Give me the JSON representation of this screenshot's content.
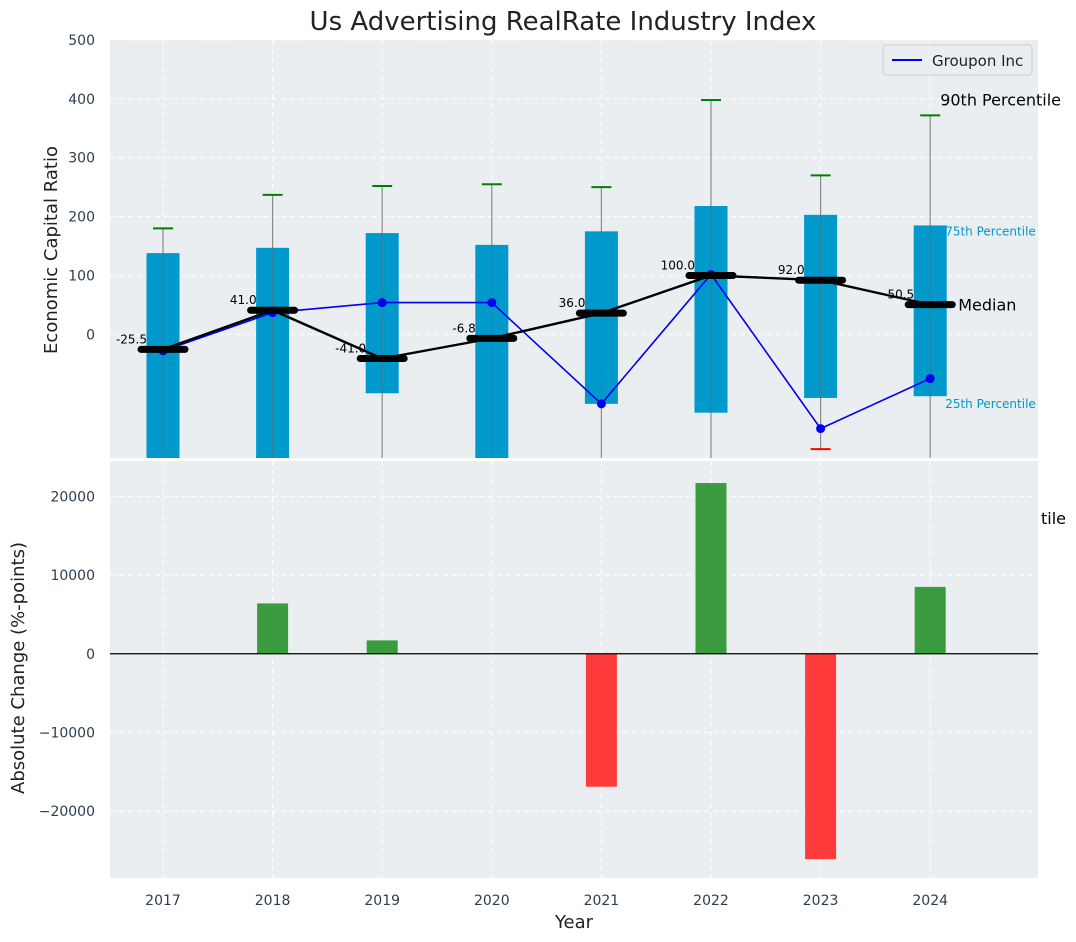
{
  "chart_data": [
    {
      "type": "box",
      "title": "Us Advertising RealRate Industry Index",
      "ylabel": "Economic Capital Ratio",
      "ylim": [
        -210,
        500
      ],
      "yticks": [
        0,
        100,
        200,
        300,
        400,
        500
      ],
      "categories": [
        "2017",
        "2018",
        "2019",
        "2020",
        "2021",
        "2022",
        "2023",
        "2024"
      ],
      "p90": [
        180,
        237,
        252,
        255,
        250,
        398,
        270,
        372
      ],
      "p75": [
        138,
        147,
        172,
        152,
        175,
        218,
        203,
        185
      ],
      "median": [
        -25.5,
        41.0,
        -41.0,
        -6.8,
        36.0,
        100.0,
        92.0,
        50.5
      ],
      "median_labels": [
        "-25.5",
        "41.0",
        "-41.0",
        "-6.8",
        "36.0",
        "100.0",
        "92.0",
        "50.5"
      ],
      "p25": [
        -210,
        -210,
        -100,
        -210,
        -118,
        -133,
        -108,
        -105
      ],
      "p10": [
        null,
        null,
        null,
        null,
        null,
        null,
        -195,
        null
      ],
      "series": [
        {
          "name": "Groupon Inc",
          "values": [
            -28,
            37,
            54,
            54,
            -118,
            102,
            -160,
            -75
          ]
        }
      ],
      "annotations": {
        "p90": "90th Percentile",
        "p75": "75th Percentile",
        "median": "Median",
        "p25": "25th Percentile",
        "cut": "tile"
      },
      "colors": {
        "box": "#0099cc",
        "median": "#000000",
        "series": "#0000ee",
        "p90_cap": "#008000",
        "p10_cap": "#ff0000",
        "background": "#eaeef0"
      },
      "legend": "top-right",
      "grid": true
    },
    {
      "type": "bar",
      "xlabel": "Year",
      "ylabel": "Absolute Change (%-points)",
      "categories": [
        "2017",
        "2018",
        "2019",
        "2020",
        "2021",
        "2022",
        "2023",
        "2024"
      ],
      "values": [
        0,
        6400,
        1700,
        0,
        -16900,
        21700,
        -26100,
        8500
      ],
      "ylim": [
        -28500,
        24500
      ],
      "yticks": [
        -20000,
        -10000,
        0,
        10000,
        20000
      ],
      "ytick_labels": [
        "−20000",
        "−10000",
        "0",
        "10000",
        "20000"
      ],
      "colors": {
        "positive": "#3a9b3f",
        "negative": "#ff3b3b"
      },
      "grid": true
    }
  ]
}
